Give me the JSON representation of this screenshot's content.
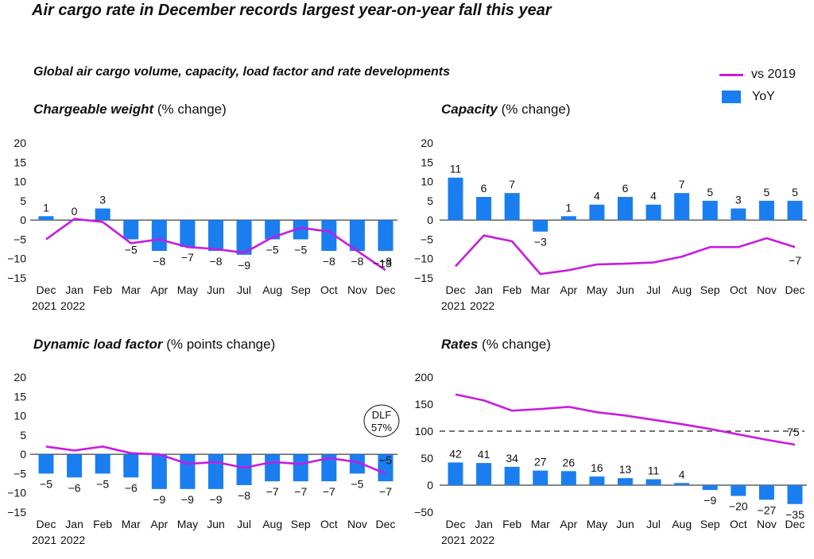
{
  "title": "Air cargo rate in December records largest year-on-year fall this year",
  "subtitle": "Global air cargo volume, capacity, load factor and rate developments",
  "legend": {
    "line_label": "vs 2019",
    "bar_label": "YoY"
  },
  "colors": {
    "bar": "#1a7ef0",
    "line": "#c81be0"
  },
  "chart_data": [
    {
      "type": "bar",
      "title_bold": "Chargeable weight",
      "title_rest": " (% change)",
      "categories": [
        "Dec",
        "Jan",
        "Feb",
        "Mar",
        "Apr",
        "May",
        "Jun",
        "Jul",
        "Aug",
        "Sep",
        "Oct",
        "Nov",
        "Dec"
      ],
      "year_labels": [
        "2021",
        "2022"
      ],
      "ylim": [
        -15,
        20
      ],
      "yticks": [
        -15,
        -10,
        -5,
        0,
        5,
        10,
        15,
        20
      ],
      "series": [
        {
          "name": "YoY",
          "type": "bar",
          "values": [
            1,
            0,
            3,
            -5,
            -8,
            -7,
            -8,
            -9,
            -5,
            -5,
            -8,
            -8,
            -8
          ],
          "labels": [
            "1",
            "0",
            "3",
            "-5",
            "-8",
            "-7",
            "-8",
            "-9",
            "-5",
            "-5",
            "-8",
            "-8",
            "-8"
          ]
        },
        {
          "name": "vs 2019",
          "type": "line",
          "values": [
            -5,
            0.3,
            -0.5,
            -6,
            -5,
            -7,
            -7.5,
            -8.5,
            -4.5,
            -2,
            -3,
            -8,
            -13
          ],
          "end_label": "-13"
        }
      ]
    },
    {
      "type": "bar",
      "title_bold": "Capacity",
      "title_rest": " (% change)",
      "categories": [
        "Dec",
        "Jan",
        "Feb",
        "Mar",
        "Apr",
        "May",
        "Jun",
        "Jul",
        "Aug",
        "Sep",
        "Oct",
        "Nov",
        "Dec"
      ],
      "year_labels": [
        "2021",
        "2022"
      ],
      "ylim": [
        -15,
        20
      ],
      "yticks": [
        -15,
        -10,
        -5,
        0,
        5,
        10,
        15,
        20
      ],
      "series": [
        {
          "name": "YoY",
          "type": "bar",
          "values": [
            11,
            6,
            7,
            -3,
            1,
            4,
            6,
            4,
            7,
            5,
            3,
            5,
            5
          ],
          "labels": [
            "11",
            "6",
            "7",
            "-3",
            "1",
            "4",
            "6",
            "4",
            "7",
            "5",
            "3",
            "5",
            "5"
          ]
        },
        {
          "name": "vs 2019",
          "type": "line",
          "values": [
            -12,
            -4,
            -5.5,
            -14,
            -13,
            -11.5,
            -11.3,
            -11,
            -9.5,
            -7,
            -7,
            -4.7,
            -7
          ],
          "end_label": "-7"
        }
      ]
    },
    {
      "type": "bar",
      "title_bold": "Dynamic load factor",
      "title_rest": " (% points change)",
      "categories": [
        "Dec",
        "Jan",
        "Feb",
        "Mar",
        "Apr",
        "May",
        "Jun",
        "Jul",
        "Aug",
        "Sep",
        "Oct",
        "Nov",
        "Dec"
      ],
      "year_labels": [
        "2021",
        "2022"
      ],
      "ylim": [
        -15,
        20
      ],
      "yticks": [
        -15,
        -10,
        -5,
        0,
        5,
        10,
        15,
        20
      ],
      "annotation": {
        "line1": "DLF",
        "line2": "57%"
      },
      "series": [
        {
          "name": "YoY",
          "type": "bar",
          "values": [
            -5,
            -6,
            -5,
            -6,
            -9,
            -9,
            -9,
            -8,
            -7,
            -7,
            -7,
            -5,
            -7
          ],
          "labels": [
            "-5",
            "-6",
            "-5",
            "-6",
            "-9",
            "-9",
            "-9",
            "-8",
            "-7",
            "-7",
            "-7",
            "-5",
            "-7"
          ]
        },
        {
          "name": "vs 2019",
          "type": "line",
          "values": [
            2,
            1,
            2,
            0.3,
            0,
            -2.5,
            -2,
            -3.5,
            -2,
            -2.5,
            -1,
            -2,
            -5
          ],
          "end_label": "-5"
        }
      ]
    },
    {
      "type": "bar",
      "title_bold": "Rates",
      "title_rest": " (% change)",
      "categories": [
        "Dec",
        "Jan",
        "Feb",
        "Mar",
        "Apr",
        "May",
        "Jun",
        "Jul",
        "Aug",
        "Sep",
        "Oct",
        "Nov",
        "Dec"
      ],
      "year_labels": [
        "2021",
        "2022"
      ],
      "ylim": [
        -50,
        200
      ],
      "yticks": [
        -50,
        0,
        50,
        100,
        150,
        200
      ],
      "reference_line": 100,
      "series": [
        {
          "name": "YoY",
          "type": "bar",
          "values": [
            42,
            41,
            34,
            27,
            26,
            16,
            13,
            11,
            4,
            -9,
            -20,
            -27,
            -35
          ],
          "labels": [
            "42",
            "41",
            "34",
            "27",
            "26",
            "16",
            "13",
            "11",
            "4",
            "-9",
            "-20",
            "-27",
            "-35"
          ]
        },
        {
          "name": "vs 2019",
          "type": "line",
          "values": [
            168,
            157,
            138,
            141,
            145,
            135,
            129,
            121,
            113,
            104,
            94,
            84,
            75
          ],
          "end_label": "75"
        }
      ]
    }
  ]
}
